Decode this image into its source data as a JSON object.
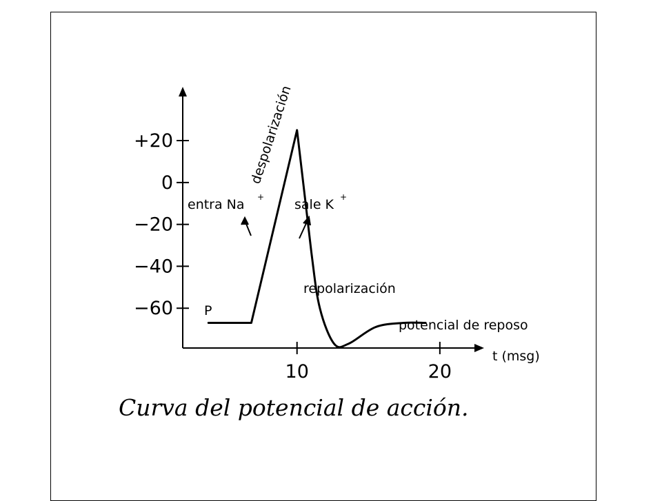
{
  "chart_data": {
    "type": "line",
    "caption": "Curva del potencial de acción.",
    "xlabel": "t (msg)",
    "x_ticks": [
      {
        "value": 10,
        "label": "10"
      },
      {
        "value": 20,
        "label": "20"
      }
    ],
    "y_ticks": [
      {
        "value": 20,
        "label": "+20"
      },
      {
        "value": 0,
        "label": "0"
      },
      {
        "value": -20,
        "label": "−20"
      },
      {
        "value": -40,
        "label": "−40"
      },
      {
        "value": -60,
        "label": "−60"
      }
    ],
    "xlim": [
      2,
      23
    ],
    "ylim": [
      -79,
      45
    ],
    "series": [
      {
        "points": [
          [
            3.8,
            -67
          ],
          [
            6.8,
            -67
          ],
          [
            10.0,
            25
          ],
          [
            11.0,
            -33
          ],
          [
            11.6,
            -60
          ],
          [
            12.6,
            -77
          ],
          [
            13.6,
            -77
          ],
          [
            15.5,
            -69
          ],
          [
            17.5,
            -67
          ],
          [
            19.0,
            -67
          ]
        ]
      }
    ],
    "annotations": {
      "start_point": "P",
      "rising": "despolarización",
      "sodium": "entra Na",
      "sodium_sup": "+",
      "potassium": "sale K",
      "potassium_sup": "+",
      "falling": "repolarización",
      "resting": "potencial de reposo"
    },
    "colors": {
      "ink": "#000000",
      "background": "#ffffff"
    }
  }
}
